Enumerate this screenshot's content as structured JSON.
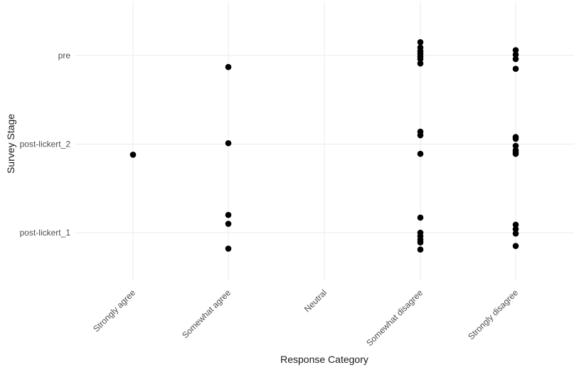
{
  "chart_data": {
    "type": "scatter",
    "title": "",
    "xlabel": "Response Category",
    "ylabel": "Survey Stage",
    "x_categories": [
      "Strongly agree",
      "Somewhat agree",
      "Neutral",
      "Somewhat disagree",
      "Strongly disagree"
    ],
    "y_categories": [
      "post-lickert_1",
      "post-lickert_2",
      "pre"
    ],
    "jitter_note": "points vertically jittered around each survey stage",
    "grid": true,
    "legend": "none",
    "point_color": "#000000",
    "points": [
      {
        "x": "Somewhat agree",
        "y": "pre",
        "y_jittered": 2.87
      },
      {
        "x": "Somewhat disagree",
        "y": "pre",
        "y_jittered": 3.15
      },
      {
        "x": "Somewhat disagree",
        "y": "pre",
        "y_jittered": 3.09
      },
      {
        "x": "Somewhat disagree",
        "y": "pre",
        "y_jittered": 3.05
      },
      {
        "x": "Somewhat disagree",
        "y": "pre",
        "y_jittered": 3.02
      },
      {
        "x": "Somewhat disagree",
        "y": "pre",
        "y_jittered": 2.99
      },
      {
        "x": "Somewhat disagree",
        "y": "pre",
        "y_jittered": 2.96
      },
      {
        "x": "Somewhat disagree",
        "y": "pre",
        "y_jittered": 2.91
      },
      {
        "x": "Strongly disagree",
        "y": "pre",
        "y_jittered": 3.06
      },
      {
        "x": "Strongly disagree",
        "y": "pre",
        "y_jittered": 3.01
      },
      {
        "x": "Strongly disagree",
        "y": "pre",
        "y_jittered": 2.96
      },
      {
        "x": "Strongly disagree",
        "y": "pre",
        "y_jittered": 2.85
      },
      {
        "x": "Strongly agree",
        "y": "post-lickert_2",
        "y_jittered": 1.88
      },
      {
        "x": "Somewhat agree",
        "y": "post-lickert_2",
        "y_jittered": 2.01
      },
      {
        "x": "Somewhat disagree",
        "y": "post-lickert_2",
        "y_jittered": 2.14
      },
      {
        "x": "Somewhat disagree",
        "y": "post-lickert_2",
        "y_jittered": 2.1
      },
      {
        "x": "Somewhat disagree",
        "y": "post-lickert_2",
        "y_jittered": 1.89
      },
      {
        "x": "Strongly disagree",
        "y": "post-lickert_2",
        "y_jittered": 2.08
      },
      {
        "x": "Strongly disagree",
        "y": "post-lickert_2",
        "y_jittered": 2.06
      },
      {
        "x": "Strongly disagree",
        "y": "post-lickert_2",
        "y_jittered": 1.98
      },
      {
        "x": "Strongly disagree",
        "y": "post-lickert_2",
        "y_jittered": 1.93
      },
      {
        "x": "Strongly disagree",
        "y": "post-lickert_2",
        "y_jittered": 1.91
      },
      {
        "x": "Strongly disagree",
        "y": "post-lickert_2",
        "y_jittered": 1.89
      },
      {
        "x": "Somewhat agree",
        "y": "post-lickert_1",
        "y_jittered": 1.2
      },
      {
        "x": "Somewhat agree",
        "y": "post-lickert_1",
        "y_jittered": 1.1
      },
      {
        "x": "Somewhat agree",
        "y": "post-lickert_1",
        "y_jittered": 0.82
      },
      {
        "x": "Somewhat disagree",
        "y": "post-lickert_1",
        "y_jittered": 1.17
      },
      {
        "x": "Somewhat disagree",
        "y": "post-lickert_1",
        "y_jittered": 1.0
      },
      {
        "x": "Somewhat disagree",
        "y": "post-lickert_1",
        "y_jittered": 0.96
      },
      {
        "x": "Somewhat disagree",
        "y": "post-lickert_1",
        "y_jittered": 0.92
      },
      {
        "x": "Somewhat disagree",
        "y": "post-lickert_1",
        "y_jittered": 0.89
      },
      {
        "x": "Somewhat disagree",
        "y": "post-lickert_1",
        "y_jittered": 0.81
      },
      {
        "x": "Strongly disagree",
        "y": "post-lickert_1",
        "y_jittered": 1.09
      },
      {
        "x": "Strongly disagree",
        "y": "post-lickert_1",
        "y_jittered": 1.04
      },
      {
        "x": "Strongly disagree",
        "y": "post-lickert_1",
        "y_jittered": 0.99
      },
      {
        "x": "Strongly disagree",
        "y": "post-lickert_1",
        "y_jittered": 0.85
      }
    ]
  }
}
